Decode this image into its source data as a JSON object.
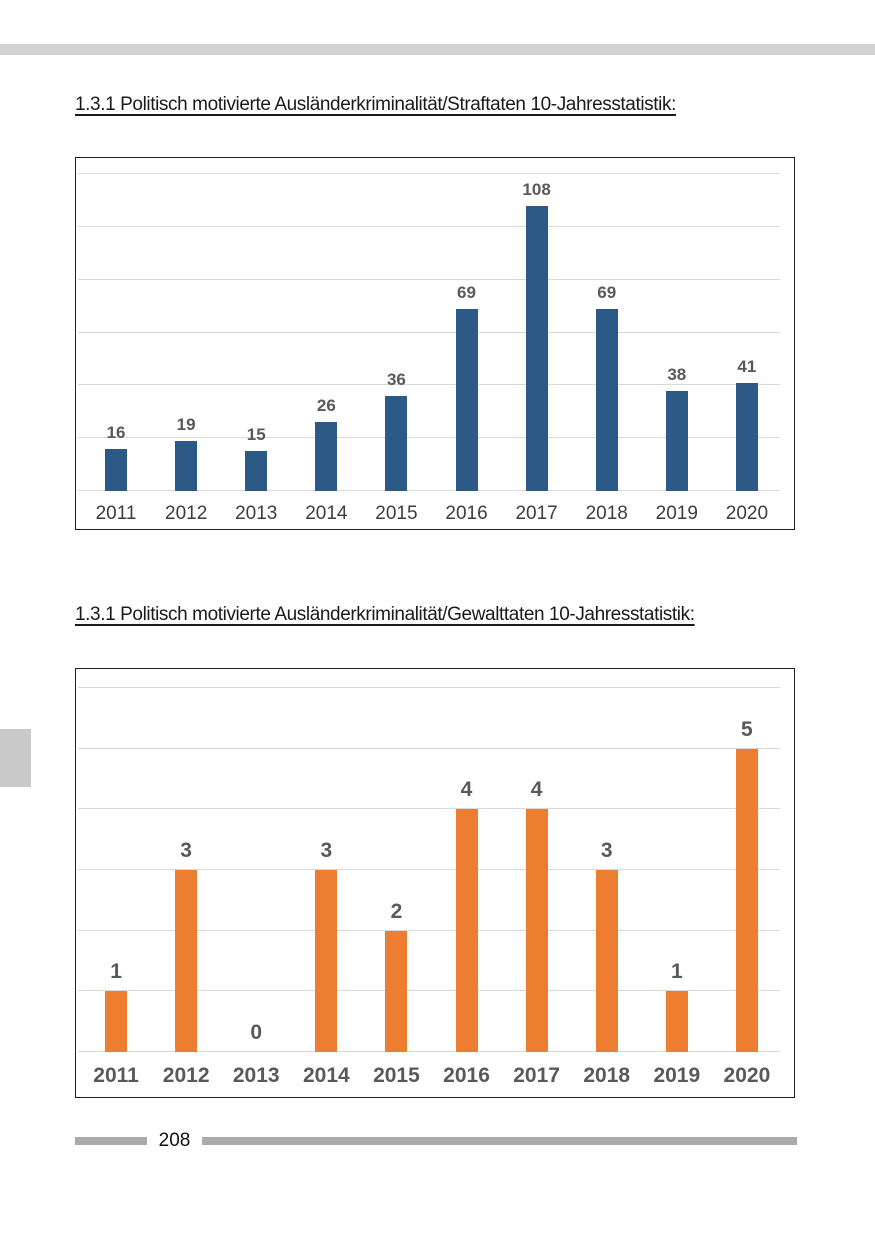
{
  "document": {
    "footer": {
      "page_number": "208"
    }
  },
  "chart_data": [
    {
      "type": "bar",
      "title": "1.3.1 Politisch motivierte Ausländerkriminalität/Straftaten 10-Jahresstatistik:",
      "categories": [
        "2011",
        "2012",
        "2013",
        "2014",
        "2015",
        "2016",
        "2017",
        "2018",
        "2019",
        "2020"
      ],
      "values": [
        16,
        19,
        15,
        26,
        36,
        69,
        108,
        69,
        38,
        41
      ],
      "xlabel": "",
      "ylabel": "",
      "ylim": [
        0,
        120
      ],
      "grid_step": 20,
      "gridlines": "horizontal",
      "legend": "none",
      "value_labels": true,
      "bar_color": "#2C5985"
    },
    {
      "type": "bar",
      "title": "1.3.1 Politisch motivierte Ausländerkriminalität/Gewalttaten 10-Jahresstatistik:",
      "categories": [
        "2011",
        "2012",
        "2013",
        "2014",
        "2015",
        "2016",
        "2017",
        "2018",
        "2019",
        "2020"
      ],
      "values": [
        1,
        3,
        0,
        3,
        2,
        4,
        4,
        3,
        1,
        5
      ],
      "xlabel": "",
      "ylabel": "",
      "ylim": [
        0,
        6
      ],
      "grid_step": 1,
      "gridlines": "horizontal",
      "legend": "none",
      "value_labels": true,
      "bar_color": "#ED7D31"
    }
  ],
  "colors": {
    "top_band": "#D2D2D2",
    "margin_marker": "#C9C9C9",
    "footer_rule": "#ABABAB",
    "gridline": "#D9D9D9",
    "value_label": "#595959",
    "bar_blue": "#2C5985",
    "bar_orange": "#ED7D31"
  }
}
